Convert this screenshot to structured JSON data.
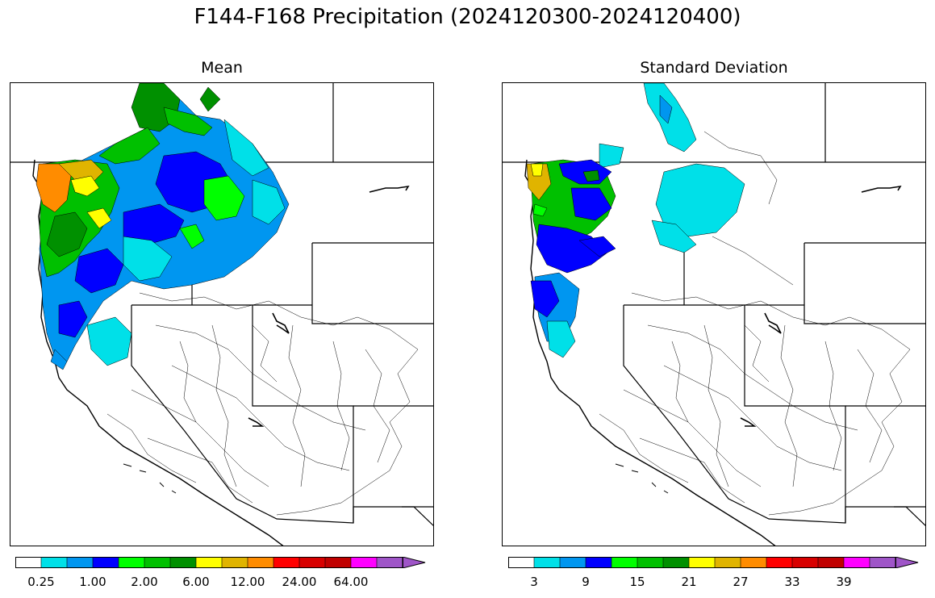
{
  "figure": {
    "title": "F144-F168 Precipitation (2024120300-2024120400)"
  },
  "panels": [
    {
      "id": "mean",
      "title": "Mean",
      "colorbar": {
        "colors": [
          "#ffffff",
          "#00e0e8",
          "#0096f0",
          "#0000ff",
          "#00ff00",
          "#00c000",
          "#009000",
          "#ffff00",
          "#e0b400",
          "#ff8c00",
          "#ff0000",
          "#d80000",
          "#c00000",
          "#ff00ff",
          "#9f55c8"
        ],
        "tick_labels": [
          "0.25",
          "1.00",
          "2.00",
          "6.00",
          "12.00",
          "24.00",
          "64.00"
        ],
        "extend": "max"
      }
    },
    {
      "id": "stddev",
      "title": "Standard Deviation",
      "colorbar": {
        "colors": [
          "#ffffff",
          "#00e0e8",
          "#0096f0",
          "#0000ff",
          "#00ff00",
          "#00c000",
          "#009000",
          "#ffff00",
          "#e0b400",
          "#ff8c00",
          "#ff0000",
          "#d80000",
          "#c00000",
          "#ff00ff",
          "#9f55c8"
        ],
        "tick_labels": [
          "3",
          "9",
          "15",
          "21",
          "27",
          "33",
          "39"
        ],
        "extend": "max"
      }
    }
  ]
}
